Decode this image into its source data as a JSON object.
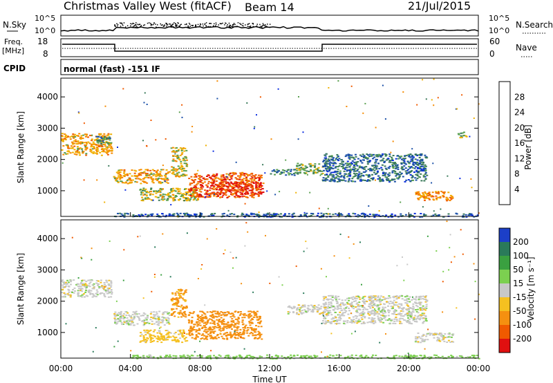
{
  "header": {
    "station": "Christmas Valley West (fitACF)",
    "beam": "Beam 14",
    "date": "21/Jul/2015"
  },
  "noise_panel": {
    "left_label": "N.Sky",
    "right_label": "N.Search",
    "tick_top": "10^5",
    "tick_bottom": "10^0"
  },
  "freq_panel": {
    "left_label_top": "Freq.",
    "left_label_bottom": "[MHz]",
    "right_label": "Nave",
    "left_ticks": [
      "18",
      "8"
    ],
    "right_ticks": [
      "60",
      "0"
    ]
  },
  "cpid": {
    "label": "CPID",
    "text": "normal (fast) -151 IF"
  },
  "axes": {
    "ylabel": "Slant Range [km]",
    "xlabel": "Time UT",
    "xticks": [
      "00:00",
      "04:00",
      "08:00",
      "12:00",
      "16:00",
      "20:00",
      "00:00"
    ],
    "yticks": [
      "1000",
      "2000",
      "3000",
      "4000"
    ]
  },
  "power_scale": {
    "title": "Power [dB]",
    "ticks": [
      "4",
      "8",
      "12",
      "16",
      "20",
      "24",
      "28"
    ],
    "colors": [
      "#0b2de0",
      "#1a4fa8",
      "#3a7a5a",
      "#5aa050",
      "#f0b000",
      "#f58a00",
      "#f05a00",
      "#e01010"
    ]
  },
  "velocity_scale": {
    "title": "Velocity [m s⁻¹]",
    "ticks": [
      "200",
      "100",
      "50",
      "15",
      "-15",
      "-50",
      "-100",
      "-200"
    ],
    "colors": [
      "#1c3fc8",
      "#2a7a5a",
      "#3aa040",
      "#7cd050",
      "#c8c8c8",
      "#f5c020",
      "#f59010",
      "#f05a00",
      "#e01010"
    ]
  },
  "chart_data": {
    "type": "heatmap",
    "title": "Christmas Valley West (fitACF) Beam 14 21/Jul/2015",
    "x_range_hours": [
      0,
      24
    ],
    "y_range_km": [
      180,
      4600
    ],
    "power_features": [
      {
        "t0": 0.0,
        "t1": 2.9,
        "r0": 2150,
        "r1": 2850,
        "db": 20
      },
      {
        "t0": 2.0,
        "t1": 2.9,
        "r0": 2500,
        "r1": 2750,
        "db": 10
      },
      {
        "t0": 3.0,
        "t1": 6.2,
        "r0": 1250,
        "r1": 1700,
        "db": 20
      },
      {
        "t0": 6.3,
        "t1": 7.2,
        "r0": 1450,
        "r1": 2400,
        "db": 18
      },
      {
        "t0": 4.5,
        "t1": 8.0,
        "r0": 700,
        "r1": 1100,
        "db": 16
      },
      {
        "t0": 7.3,
        "t1": 11.5,
        "r0": 800,
        "r1": 1600,
        "db": 26
      },
      {
        "t0": 8.5,
        "t1": 11.6,
        "r0": 900,
        "r1": 1300,
        "db": 28
      },
      {
        "t0": 12.0,
        "t1": 13.5,
        "r0": 1500,
        "r1": 1700,
        "db": 10
      },
      {
        "t0": 13.5,
        "t1": 15.0,
        "r0": 1550,
        "r1": 1900,
        "db": 14
      },
      {
        "t0": 15.0,
        "t1": 21.0,
        "r0": 1300,
        "r1": 2200,
        "db": 8
      },
      {
        "t0": 20.3,
        "t1": 22.5,
        "r0": 700,
        "r1": 1000,
        "db": 22
      },
      {
        "t0": 22.8,
        "t1": 23.3,
        "r0": 2700,
        "r1": 2900,
        "db": 16
      },
      {
        "t0": 3.0,
        "t1": 24.0,
        "r0": 180,
        "r1": 300,
        "db": 6
      }
    ],
    "velocity_features": [
      {
        "t0": 0.0,
        "t1": 2.9,
        "r0": 2150,
        "r1": 2700,
        "v": 0
      },
      {
        "t0": 3.0,
        "t1": 6.2,
        "r0": 1250,
        "r1": 1700,
        "v": 0
      },
      {
        "t0": 6.3,
        "t1": 7.2,
        "r0": 1500,
        "r1": 2400,
        "v": -60
      },
      {
        "t0": 4.5,
        "t1": 7.2,
        "r0": 700,
        "r1": 1100,
        "v": -30
      },
      {
        "t0": 7.3,
        "t1": 11.5,
        "r0": 800,
        "r1": 1700,
        "v": -80
      },
      {
        "t0": 13.0,
        "t1": 15.0,
        "r0": 1600,
        "r1": 1900,
        "v": 0
      },
      {
        "t0": 15.0,
        "t1": 21.0,
        "r0": 1300,
        "r1": 2200,
        "v": 0
      },
      {
        "t0": 20.3,
        "t1": 22.5,
        "r0": 700,
        "r1": 1000,
        "v": 0
      },
      {
        "t0": 4.0,
        "t1": 24.0,
        "r0": 180,
        "r1": 300,
        "v": 30
      }
    ]
  }
}
